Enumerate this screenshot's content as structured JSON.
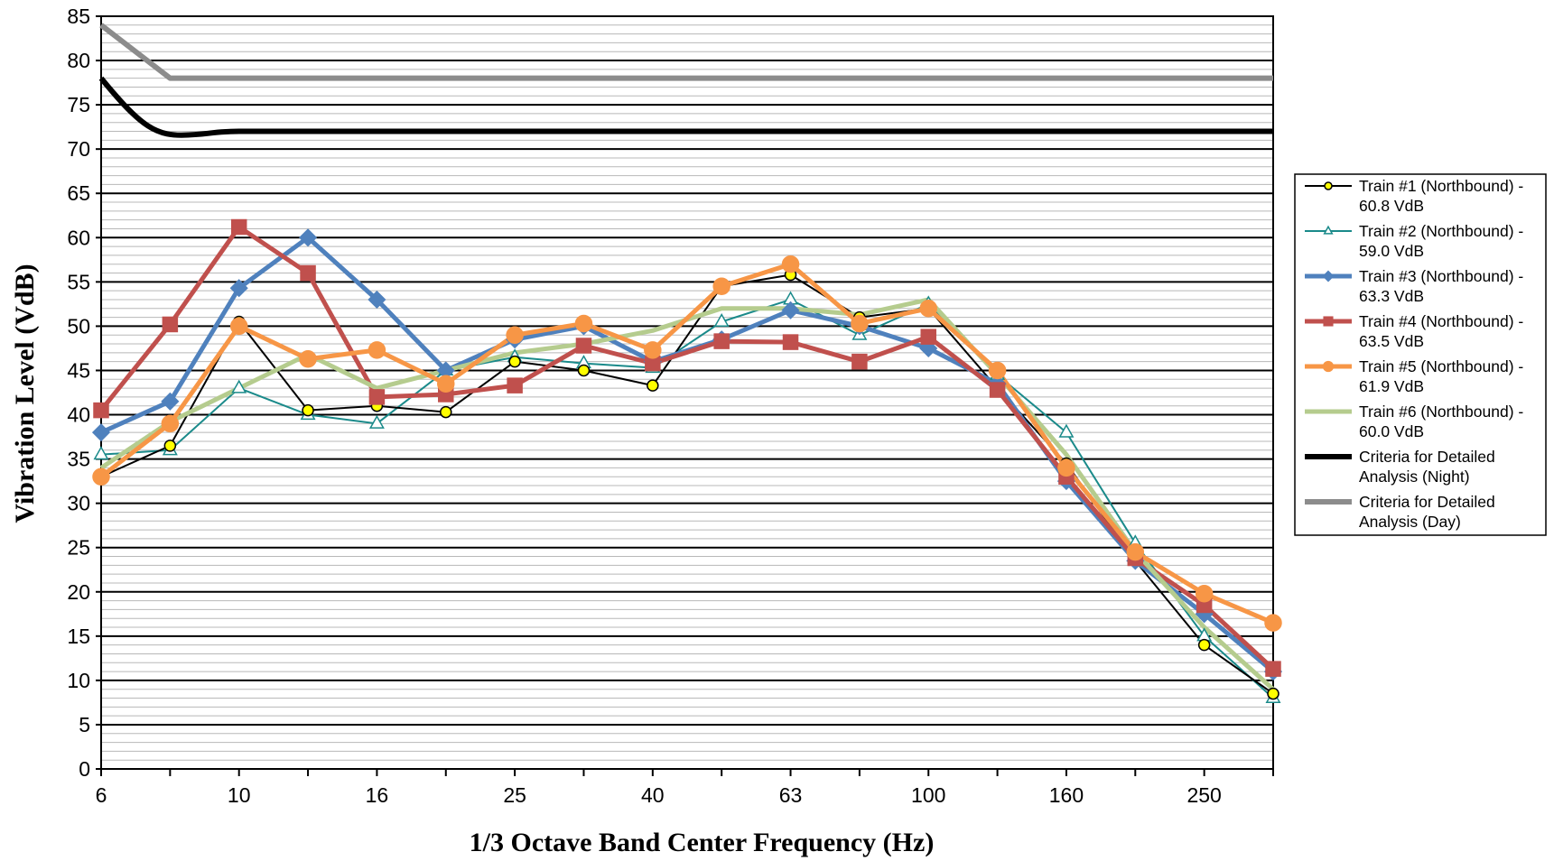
{
  "chart_data": {
    "type": "line",
    "xlabel": "1/3 Octave Band Center Frequency (Hz)",
    "ylabel": "Vibration Level (VdB)",
    "ylim": [
      0,
      85
    ],
    "y_major_step": 5,
    "y_minor_step": 1,
    "grid": true,
    "legend_position": "right",
    "x_categories": [
      "6",
      "8",
      "10",
      "12.5",
      "16",
      "20",
      "25",
      "31.5",
      "40",
      "50",
      "63",
      "80",
      "100",
      "125",
      "160",
      "200",
      "250",
      "315"
    ],
    "x_tick_labels": [
      "6",
      "",
      "10",
      "",
      "16",
      "",
      "25",
      "",
      "40",
      "",
      "63",
      "",
      "100",
      "",
      "160",
      "",
      "250",
      ""
    ],
    "series": [
      {
        "name": "Train #1 (Northbound) - 60.8 VdB",
        "legend_lines": [
          "Train #1 (Northbound) -",
          "60.8 VdB"
        ],
        "color": "#000000",
        "stroke_width": 2,
        "marker": "circle",
        "marker_fill": "#ffff00",
        "marker_stroke": "#000000",
        "marker_size": 6,
        "values": [
          33,
          36.5,
          50.5,
          40.5,
          41,
          40.3,
          46,
          45,
          43.3,
          54.5,
          55.8,
          51,
          52,
          43,
          34.5,
          23.5,
          14,
          8.5
        ]
      },
      {
        "name": "Train #2 (Northbound) - 59.0 VdB",
        "legend_lines": [
          "Train #2 (Northbound) -",
          "59.0 VdB"
        ],
        "color": "#1a8a8a",
        "stroke_width": 2,
        "marker": "triangle",
        "marker_fill": "#ffffff",
        "marker_stroke": "#1a8a8a",
        "marker_size": 8,
        "values": [
          35.5,
          36,
          43,
          40,
          39,
          45,
          46.5,
          45.8,
          45.3,
          50.5,
          53,
          49,
          52.5,
          44.5,
          38,
          25.5,
          15,
          8
        ]
      },
      {
        "name": "Train #3 (Northbound) - 63.3 VdB",
        "legend_lines": [
          "Train #3 (Northbound) -",
          "63.3 VdB"
        ],
        "color": "#4f81bd",
        "stroke_width": 5,
        "marker": "diamond",
        "marker_fill": "#4f81bd",
        "marker_stroke": "#4f81bd",
        "marker_size": 9,
        "values": [
          38,
          41.5,
          54.3,
          60,
          53,
          45,
          48.5,
          50,
          46,
          48.5,
          51.8,
          50,
          47.5,
          43.5,
          32.5,
          23.5,
          17.5,
          11
        ]
      },
      {
        "name": "Train #4 (Northbound) - 63.5 VdB",
        "legend_lines": [
          "Train #4 (Northbound) -",
          "63.5 VdB"
        ],
        "color": "#c0504d",
        "stroke_width": 5,
        "marker": "square",
        "marker_fill": "#c0504d",
        "marker_stroke": "#c0504d",
        "marker_size": 8,
        "values": [
          40.5,
          50.2,
          61.2,
          56,
          42,
          42.3,
          43.3,
          47.8,
          45.8,
          48.3,
          48.2,
          46,
          48.8,
          42.8,
          33,
          23.8,
          18.5,
          11.3
        ]
      },
      {
        "name": "Train #5 (Northbound) - 61.9 VdB",
        "legend_lines": [
          "Train #5 (Northbound) -",
          "61.9 VdB"
        ],
        "color": "#f79646",
        "stroke_width": 5,
        "marker": "circle",
        "marker_fill": "#f79646",
        "marker_stroke": "#f79646",
        "marker_size": 9,
        "values": [
          33,
          39,
          50,
          46.3,
          47.3,
          43.5,
          49,
          50.3,
          47.3,
          54.5,
          57,
          50.3,
          52,
          45,
          34,
          24.5,
          19.8,
          16.5
        ]
      },
      {
        "name": "Train #6 (Northbound) - 60.0 VdB",
        "legend_lines": [
          "Train #6 (Northbound) -",
          "60.0 VdB"
        ],
        "color": "#b5cc8e",
        "stroke_width": 5,
        "marker": "none",
        "values": [
          34,
          39.2,
          43,
          46.8,
          43,
          45,
          47,
          48,
          49.5,
          52,
          52,
          51.3,
          53,
          44.5,
          35.5,
          24.5,
          16,
          9
        ]
      },
      {
        "name": "Criteria for Detailed Analysis (Night)",
        "legend_lines": [
          "Criteria for Detailed",
          "Analysis (Night)"
        ],
        "color": "#000000",
        "stroke_width": 6,
        "marker": "none",
        "smooth": true,
        "values": [
          78,
          72,
          72,
          72,
          72,
          72,
          72,
          72,
          72,
          72,
          72,
          72,
          72,
          72,
          72,
          72,
          72,
          72
        ]
      },
      {
        "name": "Criteria for Detailed Analysis (Day)",
        "legend_lines": [
          "Criteria for Detailed",
          "Analysis (Day)"
        ],
        "color": "#8c8c8c",
        "stroke_width": 6,
        "marker": "none",
        "values": [
          84,
          78,
          78,
          78,
          78,
          78,
          78,
          78,
          78,
          78,
          78,
          78,
          78,
          78,
          78,
          78,
          78,
          78
        ]
      }
    ]
  }
}
